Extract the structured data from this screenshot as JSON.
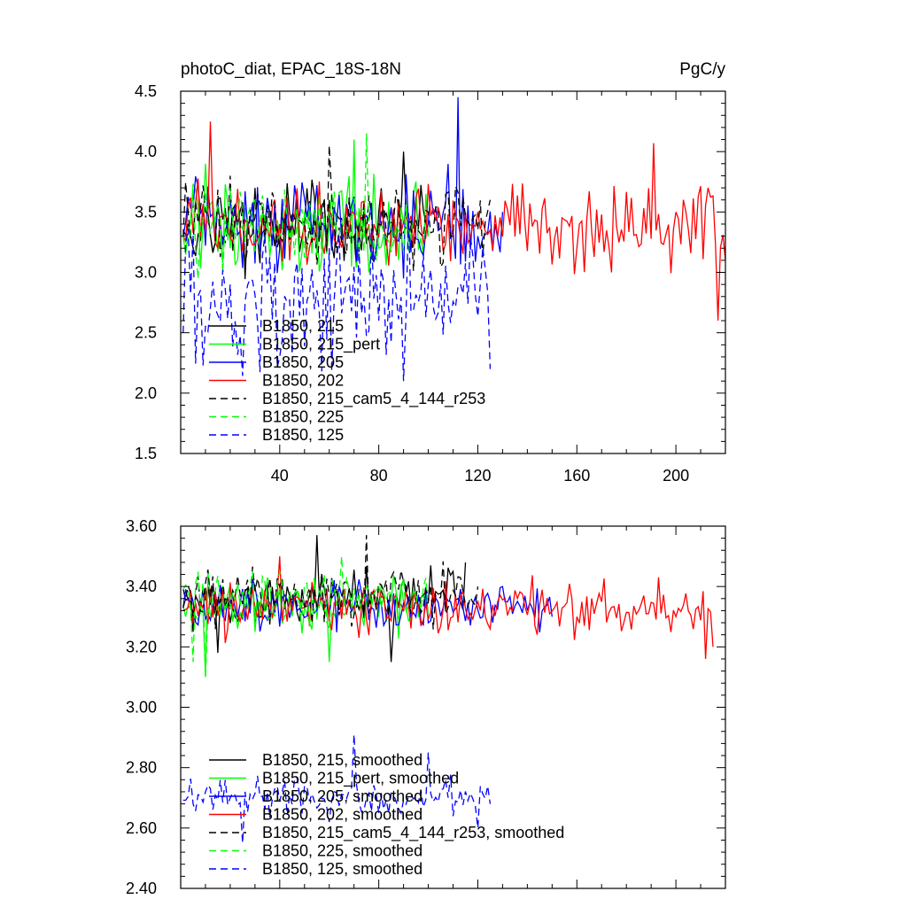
{
  "chart_data": [
    {
      "type": "line",
      "title_left": "photoC_diat, EPAC_18S-18N",
      "title_right": "PgC/y",
      "xlabel": "",
      "ylabel": "",
      "xlim": [
        0,
        220
      ],
      "ylim": [
        1.5,
        4.5
      ],
      "x_ticks": [
        40,
        80,
        120,
        160,
        200
      ],
      "x_tick_labels": [
        "40",
        "80",
        "120",
        "160",
        "200"
      ],
      "y_ticks": [
        1.5,
        2.0,
        2.5,
        3.0,
        3.5,
        4.0,
        4.5
      ],
      "y_tick_labels": [
        "1.5",
        "2.0",
        "2.5",
        "3.0",
        "3.5",
        "4.0",
        "4.5"
      ],
      "legend_position": "lower-left",
      "series": [
        {
          "name": "B1850, 215",
          "color": "#000000",
          "dash": "solid",
          "length": 100,
          "mean": 3.38,
          "amplitude": 0.3,
          "x_sample": [
            1,
            10,
            20,
            30,
            40,
            50,
            60,
            70,
            80,
            90,
            100
          ],
          "y_sample": [
            3.35,
            3.5,
            3.3,
            3.7,
            3.2,
            3.4,
            3.6,
            3.3,
            3.5,
            4.0,
            3.3
          ]
        },
        {
          "name": "B1850, 215_pert",
          "color": "#00ff00",
          "dash": "solid",
          "length": 100,
          "mean": 3.36,
          "amplitude": 0.35,
          "x_sample": [
            1,
            10,
            20,
            30,
            40,
            50,
            60,
            70,
            80,
            90,
            100
          ],
          "y_sample": [
            3.3,
            3.9,
            3.2,
            3.6,
            3.3,
            3.5,
            3.4,
            4.1,
            3.2,
            3.4,
            3.3
          ]
        },
        {
          "name": "B1850, 205",
          "color": "#0000ff",
          "dash": "solid",
          "length": 130,
          "mean": 3.38,
          "amplitude": 0.35,
          "x_sample": [
            1,
            20,
            40,
            60,
            80,
            100,
            112,
            120,
            130
          ],
          "y_sample": [
            3.3,
            3.6,
            3.2,
            3.5,
            3.3,
            3.4,
            4.45,
            3.3,
            3.5
          ]
        },
        {
          "name": "B1850, 202",
          "color": "#ff0000",
          "dash": "solid",
          "length": 220,
          "mean": 3.38,
          "amplitude": 0.3,
          "x_sample": [
            1,
            12,
            40,
            80,
            120,
            160,
            191,
            200,
            217,
            220
          ],
          "y_sample": [
            3.3,
            4.25,
            3.4,
            3.3,
            3.5,
            3.2,
            4.07,
            3.5,
            2.6,
            3.1
          ]
        },
        {
          "name": "B1850, 215_cam5_4_144_r253",
          "color": "#000000",
          "dash": "dashed",
          "length": 125,
          "mean": 3.4,
          "amplitude": 0.28,
          "x_sample": [
            1,
            20,
            40,
            60,
            80,
            100,
            110,
            125
          ],
          "y_sample": [
            3.3,
            3.8,
            3.3,
            4.05,
            3.4,
            3.5,
            3.3,
            3.6
          ]
        },
        {
          "name": "B1850, 225",
          "color": "#00ff00",
          "dash": "dashed",
          "length": 95,
          "mean": 3.38,
          "amplitude": 0.3,
          "x_sample": [
            1,
            20,
            40,
            60,
            75,
            95
          ],
          "y_sample": [
            3.3,
            3.7,
            3.3,
            3.5,
            4.15,
            3.4
          ]
        },
        {
          "name": "B1850, 125",
          "color": "#0000ff",
          "dash": "dashed",
          "length": 125,
          "mean": 2.8,
          "amplitude": 0.5,
          "x_sample": [
            1,
            20,
            40,
            60,
            80,
            90,
            100,
            125
          ],
          "y_sample": [
            2.5,
            2.9,
            2.3,
            3.2,
            2.6,
            2.1,
            2.9,
            2.2
          ]
        }
      ]
    },
    {
      "type": "line",
      "title_left": "",
      "title_right": "",
      "xlabel": "",
      "ylabel": "",
      "xlim": [
        0,
        220
      ],
      "ylim": [
        2.4,
        3.6
      ],
      "x_ticks": [
        40,
        80,
        120,
        160,
        200
      ],
      "x_tick_labels": [],
      "y_ticks": [
        2.4,
        2.6,
        2.8,
        3.0,
        3.2,
        3.4,
        3.6
      ],
      "y_tick_labels": [
        "2.40",
        "2.60",
        "2.80",
        "3.00",
        "3.20",
        "3.40",
        "3.60"
      ],
      "legend_position": "lower-left",
      "series": [
        {
          "name": "B1850, 215, smoothed",
          "color": "#000000",
          "dash": "solid",
          "length": 115,
          "mean": 3.36,
          "amplitude": 0.08,
          "x_sample": [
            5,
            15,
            40,
            55,
            60,
            85,
            110,
            115
          ],
          "y_sample": [
            3.25,
            3.18,
            3.38,
            3.57,
            3.3,
            3.15,
            3.45,
            3.48
          ]
        },
        {
          "name": "B1850, 215_pert, smoothed",
          "color": "#00ff00",
          "dash": "solid",
          "length": 100,
          "mean": 3.33,
          "amplitude": 0.09,
          "x_sample": [
            5,
            10,
            40,
            60,
            90,
            100
          ],
          "y_sample": [
            3.3,
            3.1,
            3.4,
            3.15,
            3.35,
            3.3
          ]
        },
        {
          "name": "B1850, 205, smoothed",
          "color": "#0000ff",
          "dash": "solid",
          "length": 150,
          "mean": 3.34,
          "amplitude": 0.07,
          "x_sample": [
            5,
            30,
            60,
            100,
            130,
            150
          ],
          "y_sample": [
            3.35,
            3.4,
            3.3,
            3.28,
            3.4,
            3.3
          ]
        },
        {
          "name": "B1850, 202, smoothed",
          "color": "#ff0000",
          "dash": "solid",
          "length": 215,
          "mean": 3.33,
          "amplitude": 0.08,
          "x_sample": [
            5,
            40,
            80,
            120,
            160,
            200,
            212,
            215
          ],
          "y_sample": [
            3.28,
            3.5,
            3.4,
            3.35,
            3.3,
            3.3,
            3.16,
            3.2
          ]
        },
        {
          "name": "B1850, 215_cam5_4_144_r253, smoothed",
          "color": "#000000",
          "dash": "dashed",
          "length": 120,
          "mean": 3.37,
          "amplitude": 0.08,
          "x_sample": [
            5,
            40,
            75,
            100,
            120
          ],
          "y_sample": [
            3.3,
            3.4,
            3.57,
            3.35,
            3.4
          ]
        },
        {
          "name": "B1850, 225, smoothed",
          "color": "#00ff00",
          "dash": "dashed",
          "length": 100,
          "mean": 3.36,
          "amplitude": 0.08,
          "x_sample": [
            5,
            10,
            40,
            65,
            75,
            100
          ],
          "y_sample": [
            3.15,
            3.1,
            3.45,
            3.5,
            3.4,
            3.3
          ]
        },
        {
          "name": "B1850, 125, smoothed",
          "color": "#0000ff",
          "dash": "dashed",
          "length": 125,
          "mean": 2.7,
          "amplitude": 0.06,
          "x_sample": [
            5,
            10,
            25,
            60,
            70,
            80,
            100,
            120,
            125
          ],
          "y_sample": [
            2.68,
            2.72,
            2.55,
            2.62,
            2.91,
            2.65,
            2.85,
            2.6,
            2.68
          ]
        }
      ]
    }
  ]
}
